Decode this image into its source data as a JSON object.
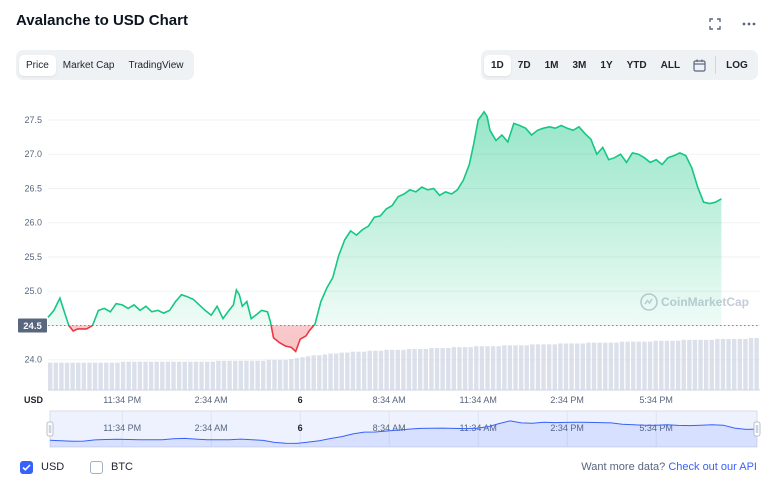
{
  "header": {
    "title": "Avalanche to USD Chart",
    "fullscreen_icon": "fullscreen-icon",
    "more_icon": "more-dots-icon"
  },
  "view_tabs": [
    {
      "label": "Price",
      "active": true
    },
    {
      "label": "Market Cap",
      "active": false
    },
    {
      "label": "TradingView",
      "active": false
    }
  ],
  "range_tabs": [
    {
      "label": "1D",
      "active": true
    },
    {
      "label": "7D",
      "active": false
    },
    {
      "label": "1M",
      "active": false
    },
    {
      "label": "3M",
      "active": false
    },
    {
      "label": "1Y",
      "active": false
    },
    {
      "label": "YTD",
      "active": false
    },
    {
      "label": "ALL",
      "active": false
    }
  ],
  "calendar_icon": "calendar-icon",
  "log_label": "LOG",
  "watermark": "CoinMarketCap",
  "colors": {
    "up": "#16c784",
    "down": "#ea3943",
    "volume": "#cfd6e4",
    "navigator": "#3861fb",
    "tag_bg": "#58667e"
  },
  "chart_data": {
    "type": "line",
    "ylabel": "",
    "xlabel": "",
    "ylim": [
      23.85,
      27.85
    ],
    "yticks": [
      24.0,
      24.5,
      25.0,
      25.5,
      26.0,
      26.5,
      27.0,
      27.5
    ],
    "baseline": 24.5,
    "baseline_label": "24.5",
    "xlim": [
      0,
      24
    ],
    "xticks": [
      {
        "x": 2.5,
        "label": "11:34 PM",
        "bold": false
      },
      {
        "x": 5.5,
        "label": "2:34 AM",
        "bold": false
      },
      {
        "x": 8.5,
        "label": "6",
        "bold": true
      },
      {
        "x": 11.5,
        "label": "8:34 AM",
        "bold": false
      },
      {
        "x": 14.5,
        "label": "11:34 AM",
        "bold": false
      },
      {
        "x": 17.5,
        "label": "2:34 PM",
        "bold": false
      },
      {
        "x": 20.5,
        "label": "5:34 PM",
        "bold": false
      }
    ],
    "currency_label": "USD",
    "series": [
      {
        "values": [
          [
            0.0,
            24.62
          ],
          [
            0.2,
            24.72
          ],
          [
            0.4,
            24.9
          ],
          [
            0.55,
            24.7
          ],
          [
            0.7,
            24.5
          ],
          [
            0.85,
            24.42
          ],
          [
            1.0,
            24.45
          ],
          [
            1.3,
            24.45
          ],
          [
            1.5,
            24.5
          ],
          [
            1.7,
            24.72
          ],
          [
            1.9,
            24.75
          ],
          [
            2.1,
            24.7
          ],
          [
            2.3,
            24.82
          ],
          [
            2.5,
            24.8
          ],
          [
            2.7,
            24.75
          ],
          [
            2.9,
            24.8
          ],
          [
            3.1,
            24.72
          ],
          [
            3.3,
            24.78
          ],
          [
            3.5,
            24.7
          ],
          [
            3.7,
            24.72
          ],
          [
            3.9,
            24.68
          ],
          [
            4.1,
            24.72
          ],
          [
            4.3,
            24.85
          ],
          [
            4.5,
            24.95
          ],
          [
            4.7,
            24.92
          ],
          [
            4.9,
            24.88
          ],
          [
            5.1,
            24.8
          ],
          [
            5.3,
            24.72
          ],
          [
            5.5,
            24.65
          ],
          [
            5.7,
            24.78
          ],
          [
            5.9,
            24.6
          ],
          [
            6.1,
            24.72
          ],
          [
            6.25,
            24.8
          ],
          [
            6.35,
            25.02
          ],
          [
            6.45,
            24.95
          ],
          [
            6.55,
            24.78
          ],
          [
            6.7,
            24.85
          ],
          [
            6.85,
            24.6
          ],
          [
            7.0,
            24.65
          ],
          [
            7.2,
            24.72
          ],
          [
            7.4,
            24.7
          ],
          [
            7.5,
            24.55
          ],
          [
            7.6,
            24.32
          ],
          [
            7.8,
            24.25
          ],
          [
            8.0,
            24.2
          ],
          [
            8.2,
            24.18
          ],
          [
            8.35,
            24.12
          ],
          [
            8.5,
            24.3
          ],
          [
            8.7,
            24.35
          ],
          [
            8.8,
            24.42
          ],
          [
            9.0,
            24.52
          ],
          [
            9.2,
            24.85
          ],
          [
            9.4,
            25.05
          ],
          [
            9.6,
            25.2
          ],
          [
            9.8,
            25.52
          ],
          [
            10.0,
            25.75
          ],
          [
            10.2,
            25.88
          ],
          [
            10.4,
            25.82
          ],
          [
            10.6,
            25.9
          ],
          [
            10.8,
            25.95
          ],
          [
            11.0,
            26.08
          ],
          [
            11.2,
            26.1
          ],
          [
            11.4,
            26.2
          ],
          [
            11.6,
            26.25
          ],
          [
            11.8,
            26.38
          ],
          [
            12.0,
            26.42
          ],
          [
            12.2,
            26.48
          ],
          [
            12.4,
            26.45
          ],
          [
            12.6,
            26.52
          ],
          [
            12.8,
            26.48
          ],
          [
            13.0,
            26.5
          ],
          [
            13.2,
            26.4
          ],
          [
            13.4,
            26.45
          ],
          [
            13.6,
            26.42
          ],
          [
            13.8,
            26.48
          ],
          [
            14.0,
            26.62
          ],
          [
            14.2,
            26.85
          ],
          [
            14.35,
            27.15
          ],
          [
            14.5,
            27.5
          ],
          [
            14.7,
            27.62
          ],
          [
            14.8,
            27.55
          ],
          [
            14.9,
            27.35
          ],
          [
            15.1,
            27.2
          ],
          [
            15.3,
            27.28
          ],
          [
            15.5,
            27.18
          ],
          [
            15.7,
            27.45
          ],
          [
            15.9,
            27.42
          ],
          [
            16.1,
            27.38
          ],
          [
            16.3,
            27.28
          ],
          [
            16.5,
            27.35
          ],
          [
            16.7,
            27.38
          ],
          [
            16.9,
            27.4
          ],
          [
            17.1,
            27.38
          ],
          [
            17.3,
            27.42
          ],
          [
            17.5,
            27.38
          ],
          [
            17.7,
            27.35
          ],
          [
            17.9,
            27.4
          ],
          [
            18.1,
            27.3
          ],
          [
            18.3,
            27.22
          ],
          [
            18.5,
            27.0
          ],
          [
            18.7,
            27.1
          ],
          [
            18.9,
            26.92
          ],
          [
            19.1,
            26.95
          ],
          [
            19.3,
            27.0
          ],
          [
            19.5,
            26.88
          ],
          [
            19.7,
            27.02
          ],
          [
            19.9,
            27.0
          ],
          [
            20.1,
            26.95
          ],
          [
            20.3,
            26.88
          ],
          [
            20.5,
            26.92
          ],
          [
            20.7,
            26.85
          ],
          [
            20.9,
            26.95
          ],
          [
            21.1,
            26.98
          ],
          [
            21.3,
            27.02
          ],
          [
            21.5,
            26.98
          ],
          [
            21.7,
            26.8
          ],
          [
            21.9,
            26.52
          ],
          [
            22.1,
            26.3
          ],
          [
            22.3,
            26.28
          ],
          [
            22.5,
            26.3
          ],
          [
            22.7,
            26.35
          ]
        ]
      }
    ],
    "volume_values": [
      30,
      30,
      30,
      30,
      30,
      30,
      30,
      30,
      30,
      30,
      30,
      30,
      30,
      31,
      31,
      31,
      31,
      31,
      31,
      31,
      31,
      31,
      31,
      31,
      31,
      31,
      31,
      31,
      31,
      31,
      32,
      32,
      32,
      32,
      32,
      32,
      32,
      32,
      32,
      33,
      33,
      33,
      33,
      34,
      35,
      36,
      37,
      38,
      38,
      39,
      40,
      40,
      41,
      41,
      42,
      42,
      42,
      43,
      43,
      43,
      44,
      44,
      44,
      44,
      45,
      45,
      45,
      45,
      46,
      46,
      46,
      46,
      47,
      47,
      47,
      47,
      48,
      48,
      48,
      48,
      48,
      49,
      49,
      49,
      49,
      49,
      50,
      50,
      50,
      50,
      50,
      51,
      51,
      51,
      51,
      51,
      52,
      52,
      52,
      52,
      52,
      52,
      53,
      53,
      53,
      53,
      53,
      53,
      54,
      54,
      54,
      54,
      54,
      55,
      55,
      55,
      55,
      55,
      55,
      56,
      56,
      56,
      56,
      56,
      56,
      57,
      57
    ],
    "navigator_values": [
      24.62,
      24.55,
      24.48,
      24.5,
      24.68,
      24.75,
      24.78,
      24.74,
      24.72,
      24.7,
      24.72,
      24.85,
      24.92,
      24.8,
      24.72,
      24.7,
      24.72,
      24.8,
      24.72,
      24.6,
      24.3,
      24.18,
      24.15,
      24.35,
      24.55,
      24.9,
      25.2,
      25.6,
      25.88,
      25.9,
      26.05,
      26.2,
      26.35,
      26.45,
      26.48,
      26.5,
      26.45,
      26.42,
      26.48,
      26.7,
      27.2,
      27.6,
      27.3,
      27.25,
      27.4,
      27.35,
      27.38,
      27.4,
      27.38,
      27.35,
      27.3,
      27.1,
      27.0,
      26.95,
      26.95,
      27.0,
      26.92,
      26.88,
      26.95,
      27.0,
      26.95,
      26.5,
      26.3,
      26.35
    ]
  },
  "footer": {
    "usd_label": "USD",
    "usd_checked": true,
    "btc_label": "BTC",
    "btc_checked": false,
    "more_text": "Want more data?",
    "api_link": "Check out our API"
  }
}
